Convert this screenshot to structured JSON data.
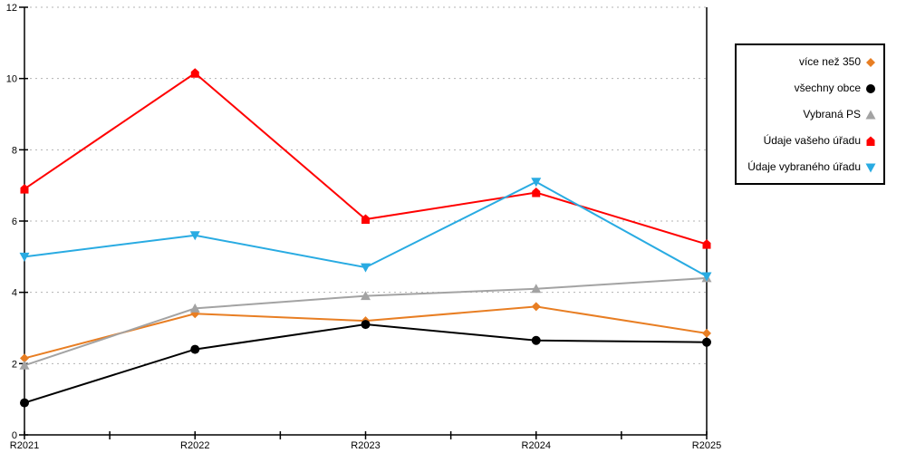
{
  "chart_data": {
    "type": "line",
    "title": "",
    "xlabel": "",
    "ylabel": "",
    "categories": [
      "R2021",
      "R2022",
      "R2023",
      "R2024",
      "R2025"
    ],
    "series": [
      {
        "name": "více než 350",
        "color": "#E87E23",
        "marker": "diamond",
        "values": [
          2.15,
          3.4,
          3.2,
          3.6,
          2.85
        ]
      },
      {
        "name": "všechny obce",
        "color": "#000000",
        "marker": "circle",
        "values": [
          0.9,
          2.4,
          3.1,
          2.65,
          2.6
        ]
      },
      {
        "name": "Vybraná PS",
        "color": "#A3A3A3",
        "marker": "triangle-up",
        "values": [
          1.95,
          3.55,
          3.9,
          4.1,
          4.4
        ]
      },
      {
        "name": "Údaje vašeho úřadu",
        "color": "#FF0000",
        "marker": "pentagon",
        "values": [
          6.9,
          10.15,
          6.05,
          6.8,
          5.35
        ]
      },
      {
        "name": "Údaje vybraného úřadu",
        "color": "#29ABE2",
        "marker": "triangle-down",
        "values": [
          5.0,
          5.6,
          4.7,
          7.1,
          4.45
        ]
      }
    ],
    "ylim": [
      0,
      12
    ],
    "yticks": [
      0,
      2,
      4,
      6,
      8,
      10,
      12
    ],
    "grid": "horizontal-dotted",
    "legend_position": "right"
  },
  "colors": {
    "background": "#FFFFFF",
    "axis": "#000000",
    "gridline": "#B3B3B3",
    "legend_border": "#000000",
    "text": "#000000"
  }
}
